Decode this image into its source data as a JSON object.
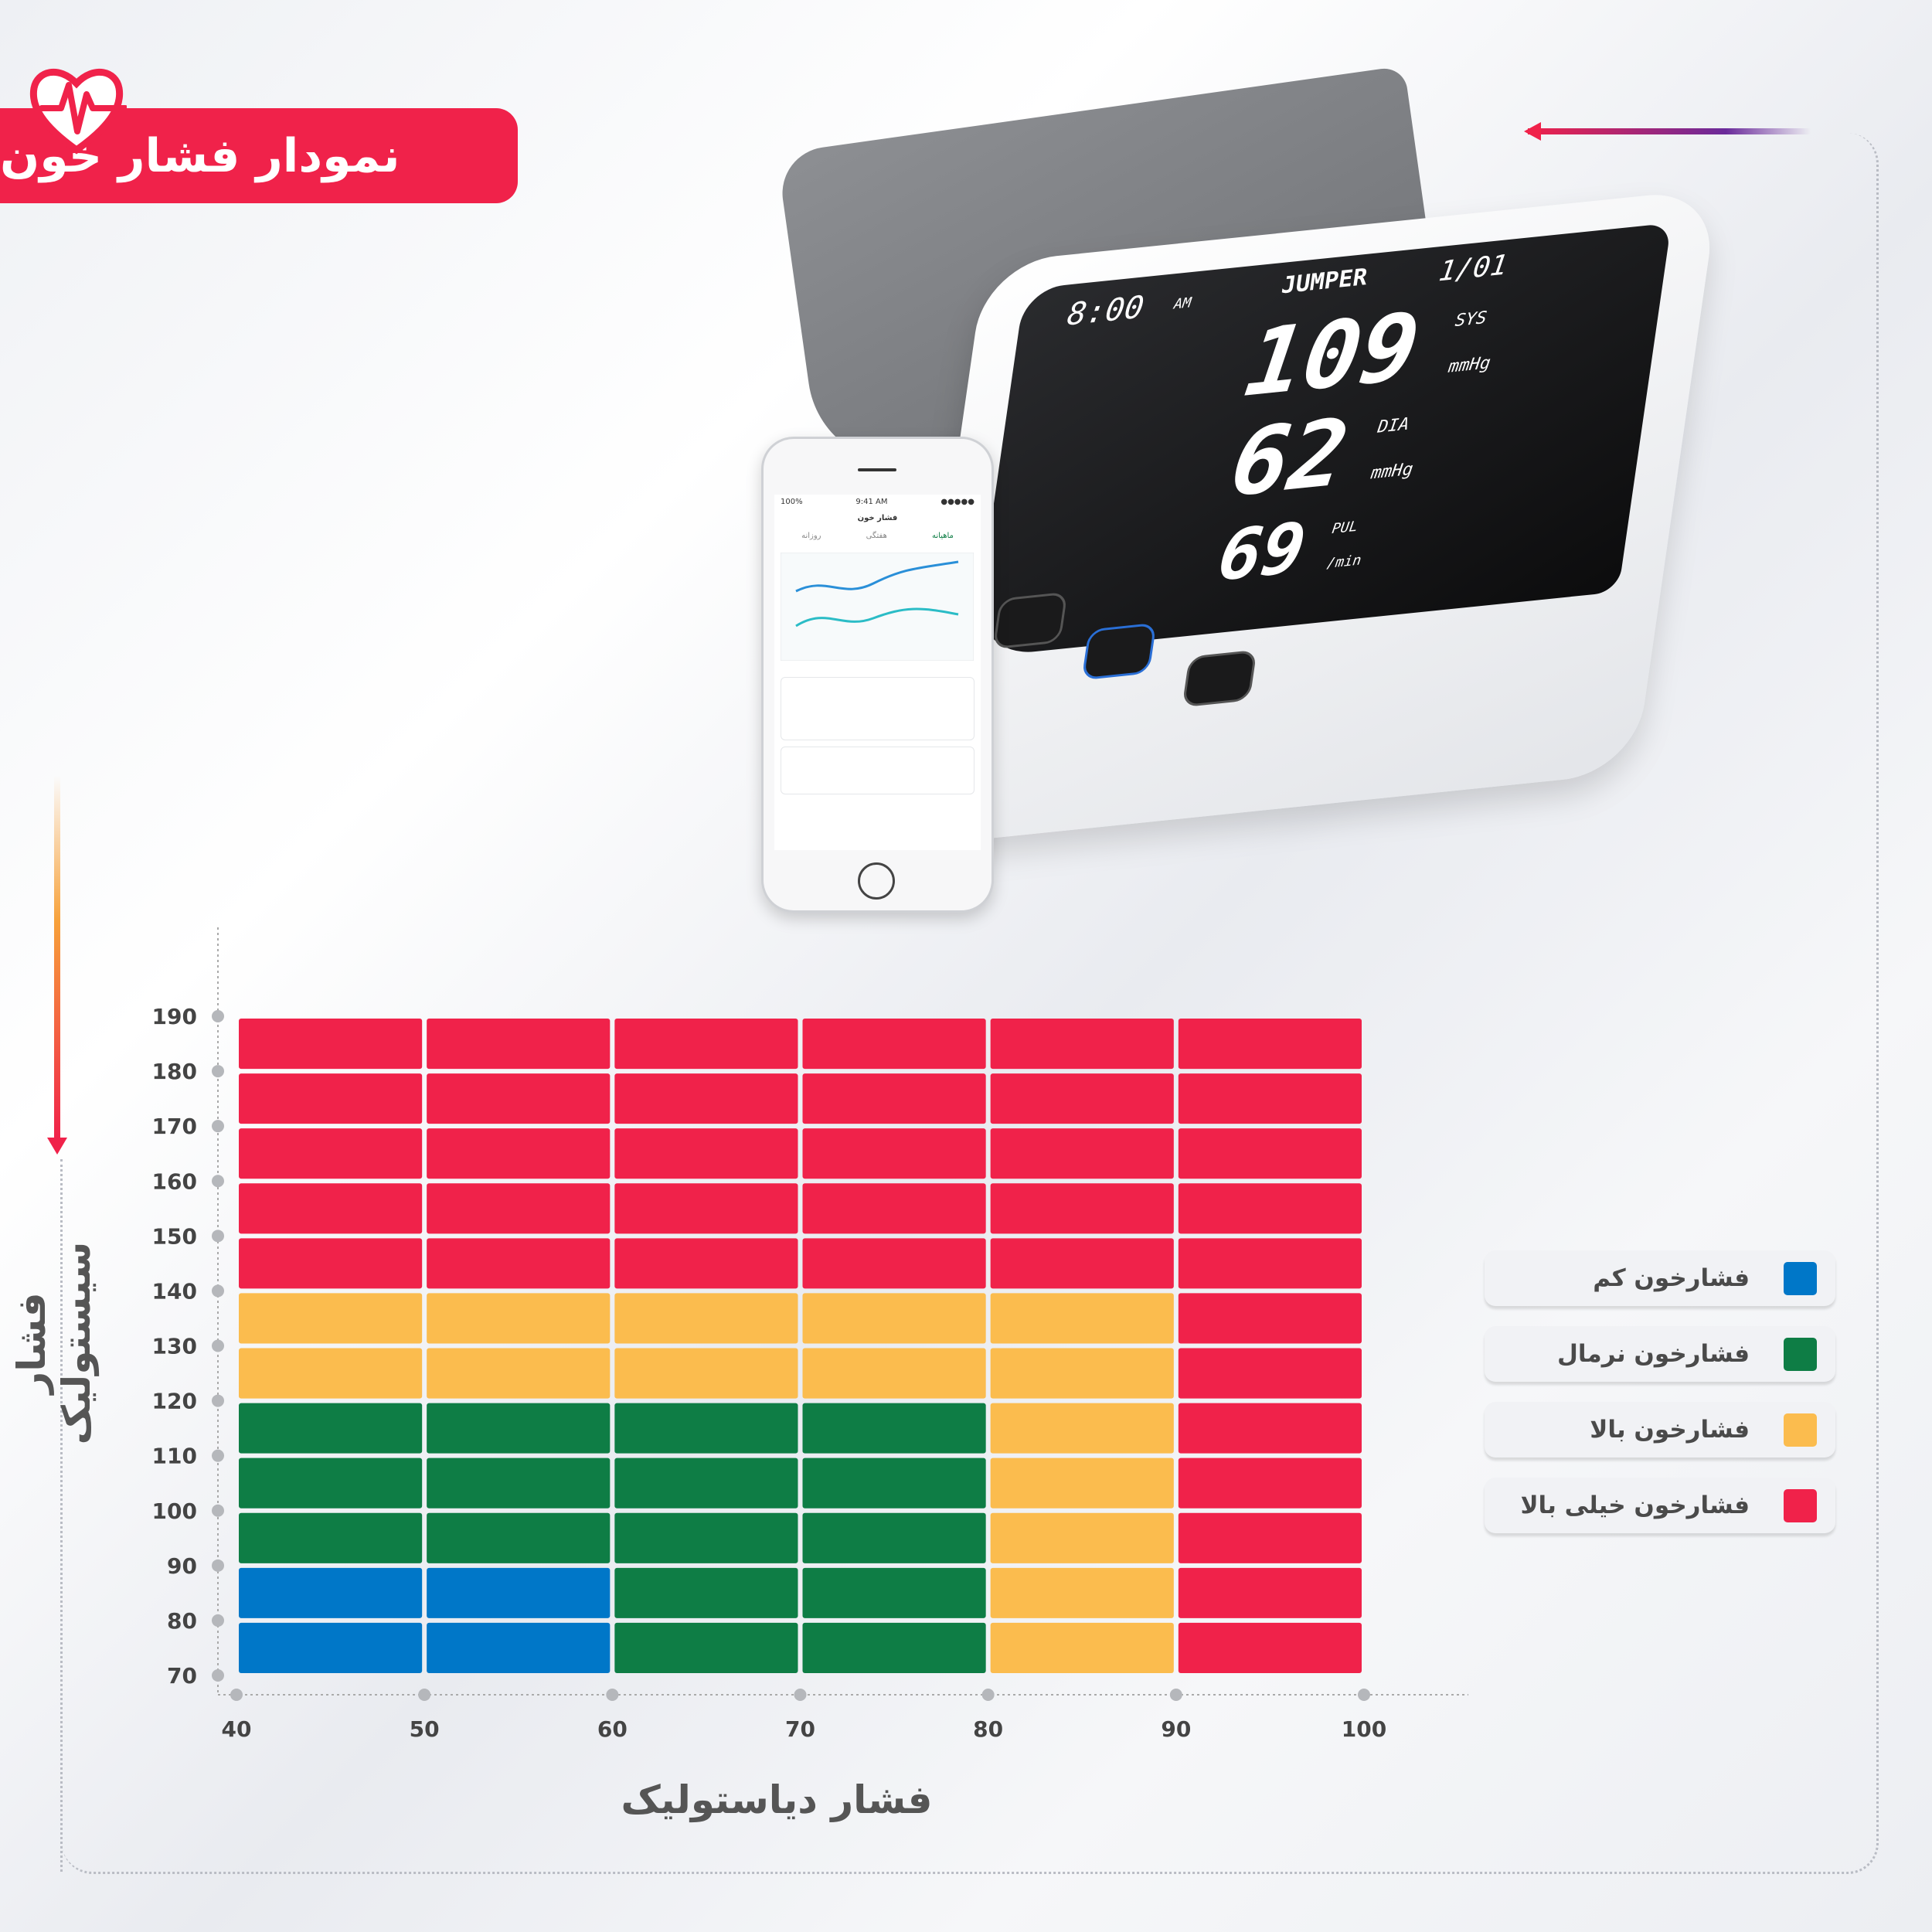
{
  "header": {
    "title": "نمودار فشار خون",
    "icon": "heart-pulse-icon"
  },
  "device": {
    "brand": "JUMPER",
    "time": "8:00",
    "ampm": "AM",
    "date": "1/01",
    "sys": "109",
    "sys_label": "SYS",
    "dia": "62",
    "dia_label": "DIA",
    "unit": "mmHg",
    "pulse": "69",
    "pulse_label": "PUL",
    "pulse_unit": "/min"
  },
  "phone": {
    "clock": "9:41 AM",
    "battery": "100%",
    "title": "فشار خون",
    "tabs": [
      "ماهیانه",
      "هفتگی",
      "روزانه"
    ]
  },
  "colors": {
    "accent": "#f0224a",
    "low": "#0077c8",
    "normal": "#0e7d45",
    "high": "#fbbc4e",
    "very_high": "#f0224a"
  },
  "chart_data": {
    "type": "heatmap",
    "title": "",
    "xlabel": "فشار دیاستولیک",
    "ylabel": "فشار سیستولیک",
    "x_ticks": [
      40,
      50,
      60,
      70,
      80,
      90,
      100
    ],
    "y_ticks": [
      190,
      180,
      170,
      160,
      150,
      140,
      130,
      120,
      110,
      100,
      90,
      80,
      70
    ],
    "xlim": [
      40,
      100
    ],
    "ylim": [
      70,
      190
    ],
    "categories": [
      {
        "name": "فشارخون کم",
        "color": "#0077c8"
      },
      {
        "name": "فشارخون نرمال",
        "color": "#0e7d45"
      },
      {
        "name": "فشارخون بالا",
        "color": "#fbbc4e"
      },
      {
        "name": "فشارخون خیلی بالا",
        "color": "#f0224a"
      }
    ],
    "cells_top_to_bottom": [
      [
        3,
        3,
        3,
        3,
        3,
        3
      ],
      [
        3,
        3,
        3,
        3,
        3,
        3
      ],
      [
        3,
        3,
        3,
        3,
        3,
        3
      ],
      [
        3,
        3,
        3,
        3,
        3,
        3
      ],
      [
        3,
        3,
        3,
        3,
        3,
        3
      ],
      [
        2,
        2,
        2,
        2,
        2,
        3
      ],
      [
        2,
        2,
        2,
        2,
        2,
        3
      ],
      [
        1,
        1,
        1,
        1,
        2,
        3
      ],
      [
        1,
        1,
        1,
        1,
        2,
        3
      ],
      [
        1,
        1,
        1,
        1,
        2,
        3
      ],
      [
        0,
        0,
        1,
        1,
        2,
        3
      ],
      [
        0,
        0,
        1,
        1,
        2,
        3
      ]
    ],
    "legend_position": "right"
  }
}
